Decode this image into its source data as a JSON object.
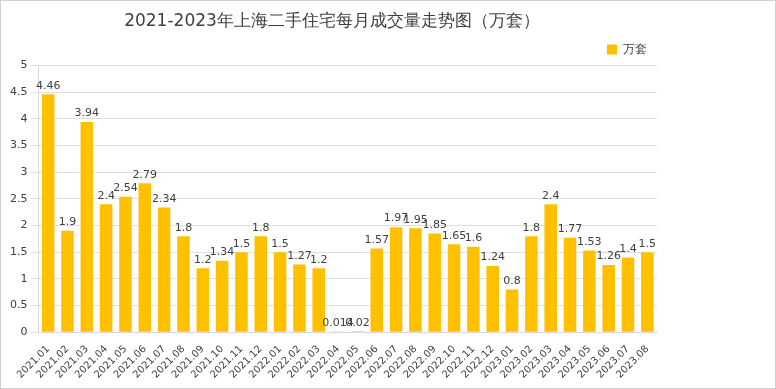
{
  "chart_data": {
    "type": "bar",
    "title": "2021-2023年上海二手住宅每月成交量走势图（万套）",
    "categories": [
      "2021.01",
      "2021.02",
      "2021.03",
      "2021.04",
      "2021.05",
      "2021.06",
      "2021.07",
      "2021.08",
      "2021.09",
      "2021.10",
      "2021.11",
      "2021.12",
      "2022.01",
      "2022.02",
      "2022.03",
      "2022.04",
      "2022.05",
      "2022.06",
      "2022.07",
      "2022.08",
      "2022.09",
      "2022.10",
      "2022.11",
      "2022.12",
      "2023.01",
      "2023.02",
      "2023.03",
      "2023.04",
      "2023.05",
      "2023.06",
      "2023.07",
      "2023.08"
    ],
    "series": [
      {
        "name": "万套",
        "color": "#ffc000",
        "values": [
          4.46,
          1.9,
          3.94,
          2.4,
          2.54,
          2.79,
          2.34,
          1.8,
          1.2,
          1.34,
          1.5,
          1.8,
          1.5,
          1.27,
          1.2,
          0.014,
          0.02,
          1.57,
          1.97,
          1.95,
          1.85,
          1.65,
          1.6,
          1.24,
          0.8,
          1.8,
          2.4,
          1.77,
          1.53,
          1.26,
          1.4,
          1.5
        ]
      }
    ],
    "ylim": [
      0,
      5
    ],
    "yticks": [
      0,
      0.5,
      1,
      1.5,
      2,
      2.5,
      3,
      3.5,
      4,
      4.5,
      5
    ],
    "grid": true,
    "legend": "top-right",
    "data_labels": true
  }
}
